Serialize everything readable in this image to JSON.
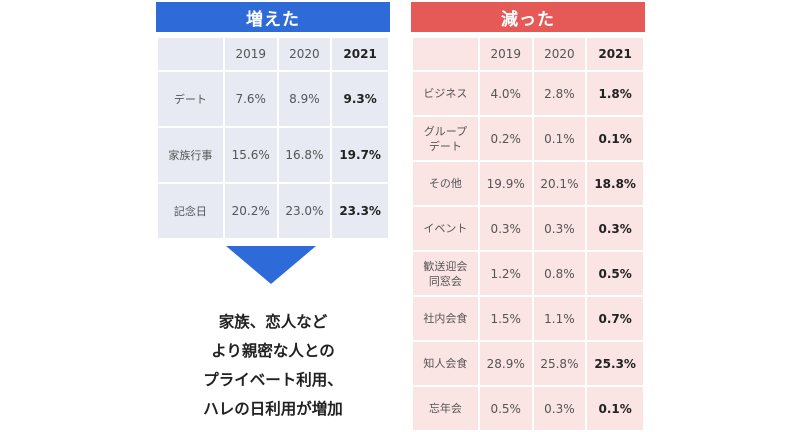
{
  "increased": {
    "title": "増えた",
    "years": [
      "2019",
      "2020",
      "2021"
    ],
    "rows": [
      {
        "label": "デート",
        "v2019": "7.6%",
        "v2020": "8.9%",
        "v2021": "9.3%"
      },
      {
        "label": "家族行事",
        "v2019": "15.6%",
        "v2020": "16.8%",
        "v2021": "19.7%"
      },
      {
        "label": "記念日",
        "v2019": "20.2%",
        "v2020": "23.0%",
        "v2021": "23.3%"
      }
    ]
  },
  "decreased": {
    "title": "減った",
    "years": [
      "2019",
      "2020",
      "2021"
    ],
    "rows": [
      {
        "label_line1": "ビジネス",
        "label_line2": "",
        "v2019": "4.0%",
        "v2020": "2.8%",
        "v2021": "1.8%"
      },
      {
        "label_line1": "グループ",
        "label_line2": "デート",
        "v2019": "0.2%",
        "v2020": "0.1%",
        "v2021": "0.1%"
      },
      {
        "label_line1": "その他",
        "label_line2": "",
        "v2019": "19.9%",
        "v2020": "20.1%",
        "v2021": "18.8%"
      },
      {
        "label_line1": "イベント",
        "label_line2": "",
        "v2019": "0.3%",
        "v2020": "0.3%",
        "v2021": "0.3%"
      },
      {
        "label_line1": "歓送迎会",
        "label_line2": "同窓会",
        "v2019": "1.2%",
        "v2020": "0.8%",
        "v2021": "0.5%"
      },
      {
        "label_line1": "社内会食",
        "label_line2": "",
        "v2019": "1.5%",
        "v2020": "1.1%",
        "v2021": "0.7%"
      },
      {
        "label_line1": "知人会食",
        "label_line2": "",
        "v2019": "28.9%",
        "v2020": "25.8%",
        "v2021": "25.3%"
      },
      {
        "label_line1": "忘年会",
        "label_line2": "",
        "v2019": "0.5%",
        "v2020": "0.3%",
        "v2021": "0.1%"
      }
    ]
  },
  "caption": {
    "line1": "家族、恋人など",
    "line2": "より親密な人との",
    "line3": "プライベート利用、",
    "line4": "ハレの日利用が増加"
  },
  "colors": {
    "increase_accent": "#2f6bd8",
    "decrease_accent": "#e55a56",
    "increase_cell": "#e7eaf2",
    "decrease_cell": "#fbe4e4"
  }
}
